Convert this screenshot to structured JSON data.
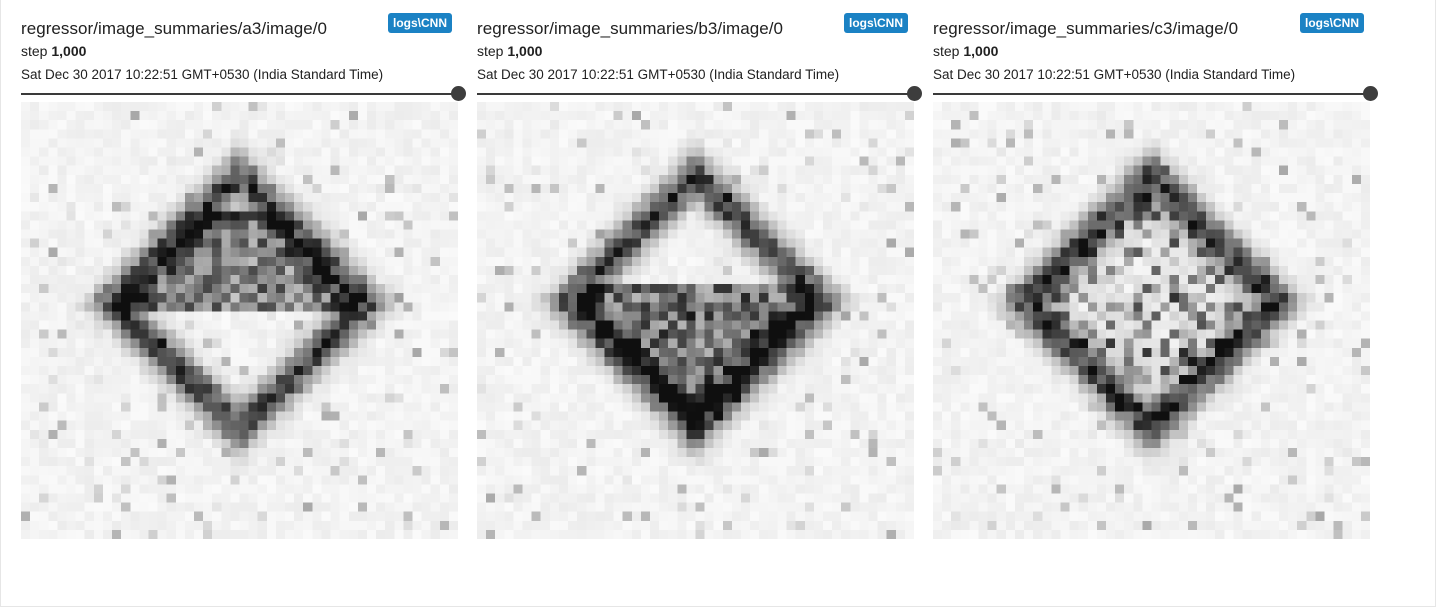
{
  "cards": [
    {
      "title": "regressor/image_summaries/a3/image/0",
      "run": "logs\\CNN",
      "step_label": "step",
      "step_value": "1,000",
      "timestamp": "Sat Dec 30 2017 10:22:51 GMT+0530 (India Standard Time)",
      "image_icon": "grayscale-diamond-image"
    },
    {
      "title": "regressor/image_summaries/b3/image/0",
      "run": "logs\\CNN",
      "step_label": "step",
      "step_value": "1,000",
      "timestamp": "Sat Dec 30 2017 10:22:51 GMT+0530 (India Standard Time)",
      "image_icon": "grayscale-diamond-image"
    },
    {
      "title": "regressor/image_summaries/c3/image/0",
      "run": "logs\\CNN",
      "step_label": "step",
      "step_value": "1,000",
      "timestamp": "Sat Dec 30 2017 10:22:51 GMT+0530 (India Standard Time)",
      "image_icon": "grayscale-diamond-image"
    }
  ],
  "colors": {
    "badge": "#1b82c4",
    "text": "#212121",
    "slider": "#3a3a3a"
  }
}
